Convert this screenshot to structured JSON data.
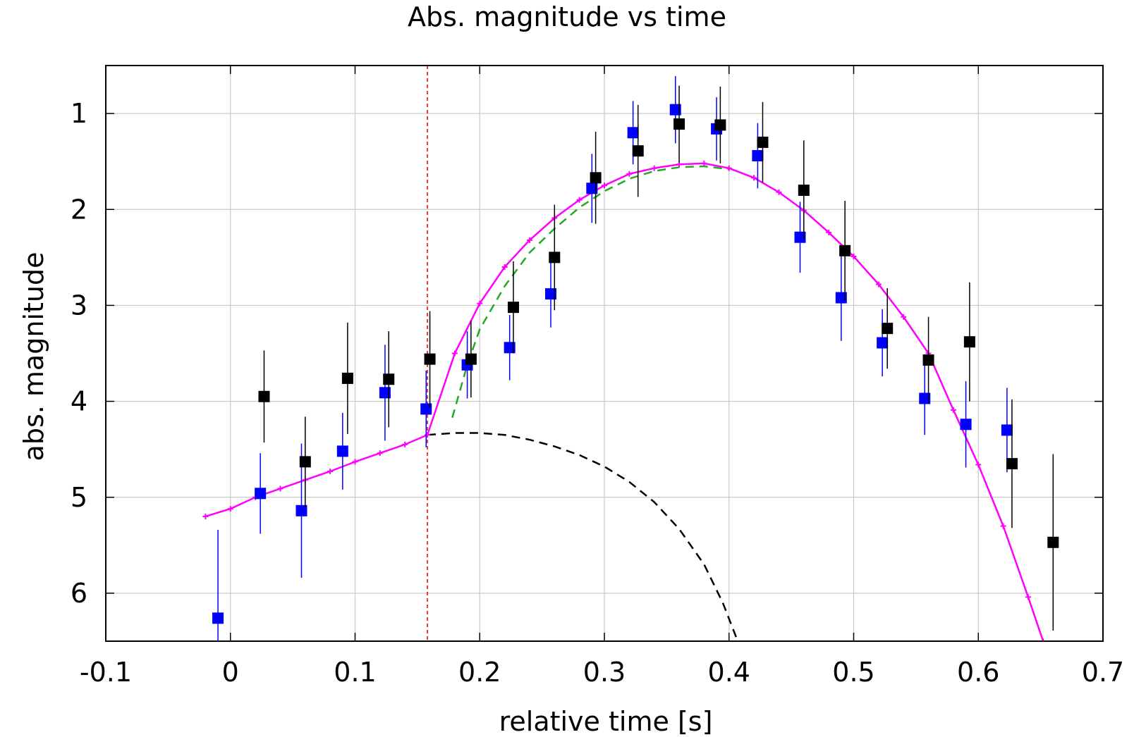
{
  "chart_data": {
    "type": "scatter",
    "title": "Abs. magnitude vs time",
    "xlabel": "relative time [s]",
    "ylabel": "abs. magnitude",
    "xlim": [
      -0.1,
      0.7
    ],
    "ylim": [
      6.5,
      0.5
    ],
    "y_inverted": true,
    "grid": true,
    "x_ticks": [
      "-0.1",
      "0",
      "0.1",
      "0.2",
      "0.3",
      "0.4",
      "0.5",
      "0.6",
      "0.7"
    ],
    "y_ticks": [
      "1",
      "2",
      "3",
      "4",
      "5",
      "6"
    ],
    "vline": {
      "x": 0.158,
      "color": "#e00000",
      "style": "dashed"
    },
    "colors": {
      "blue_points": "#0000ff",
      "black_points": "#000000",
      "fit_line": "#ff00ff",
      "green_dashed": "#22aa22",
      "black_dashed": "#000000"
    },
    "series": [
      {
        "kind": "errorbar",
        "color": "#0000ff",
        "points": [
          {
            "x": -0.01,
            "y": 6.26,
            "err": 0.92
          },
          {
            "x": 0.024,
            "y": 4.96,
            "err": 0.42
          },
          {
            "x": 0.057,
            "y": 5.14,
            "err": 0.7
          },
          {
            "x": 0.09,
            "y": 4.52,
            "err": 0.4
          },
          {
            "x": 0.124,
            "y": 3.91,
            "err": 0.5
          },
          {
            "x": 0.157,
            "y": 4.08,
            "err": 0.4
          },
          {
            "x": 0.19,
            "y": 3.62,
            "err": 0.35
          },
          {
            "x": 0.224,
            "y": 3.44,
            "err": 0.34
          },
          {
            "x": 0.257,
            "y": 2.88,
            "err": 0.35
          },
          {
            "x": 0.29,
            "y": 1.78,
            "err": 0.36
          },
          {
            "x": 0.323,
            "y": 1.2,
            "err": 0.33
          },
          {
            "x": 0.357,
            "y": 0.96,
            "err": 0.35
          },
          {
            "x": 0.39,
            "y": 1.16,
            "err": 0.33
          },
          {
            "x": 0.423,
            "y": 1.44,
            "err": 0.34
          },
          {
            "x": 0.457,
            "y": 2.29,
            "err": 0.37
          },
          {
            "x": 0.49,
            "y": 2.92,
            "err": 0.45
          },
          {
            "x": 0.523,
            "y": 3.39,
            "err": 0.35
          },
          {
            "x": 0.557,
            "y": 3.97,
            "err": 0.38
          },
          {
            "x": 0.59,
            "y": 4.24,
            "err": 0.45
          },
          {
            "x": 0.623,
            "y": 4.3,
            "err": 0.44
          }
        ]
      },
      {
        "kind": "errorbar",
        "color": "#000000",
        "points": [
          {
            "x": 0.027,
            "y": 3.95,
            "err": 0.48
          },
          {
            "x": 0.06,
            "y": 4.63,
            "err": 0.47
          },
          {
            "x": 0.094,
            "y": 3.76,
            "err": 0.58
          },
          {
            "x": 0.127,
            "y": 3.77,
            "err": 0.5
          },
          {
            "x": 0.16,
            "y": 3.56,
            "err": 0.5
          },
          {
            "x": 0.193,
            "y": 3.56,
            "err": 0.4
          },
          {
            "x": 0.227,
            "y": 3.02,
            "err": 0.48
          },
          {
            "x": 0.26,
            "y": 2.5,
            "err": 0.55
          },
          {
            "x": 0.293,
            "y": 1.67,
            "err": 0.48
          },
          {
            "x": 0.327,
            "y": 1.39,
            "err": 0.48
          },
          {
            "x": 0.36,
            "y": 1.11,
            "err": 0.4
          },
          {
            "x": 0.393,
            "y": 1.12,
            "err": 0.4
          },
          {
            "x": 0.427,
            "y": 1.3,
            "err": 0.42
          },
          {
            "x": 0.46,
            "y": 1.8,
            "err": 0.52
          },
          {
            "x": 0.493,
            "y": 2.43,
            "err": 0.52
          },
          {
            "x": 0.527,
            "y": 3.24,
            "err": 0.42
          },
          {
            "x": 0.56,
            "y": 3.57,
            "err": 0.45
          },
          {
            "x": 0.593,
            "y": 3.38,
            "err": 0.62
          },
          {
            "x": 0.627,
            "y": 4.65,
            "err": 0.67
          },
          {
            "x": 0.66,
            "y": 5.47,
            "err": 0.92
          }
        ]
      },
      {
        "kind": "line",
        "color": "#ff00ff",
        "markers": true,
        "points": [
          [
            -0.02,
            5.2
          ],
          [
            0.0,
            5.12
          ],
          [
            0.02,
            5.0
          ],
          [
            0.04,
            4.91
          ],
          [
            0.06,
            4.82
          ],
          [
            0.08,
            4.73
          ],
          [
            0.1,
            4.63
          ],
          [
            0.12,
            4.54
          ],
          [
            0.14,
            4.45
          ],
          [
            0.158,
            4.35
          ],
          [
            0.18,
            3.5
          ],
          [
            0.2,
            2.98
          ],
          [
            0.22,
            2.6
          ],
          [
            0.24,
            2.32
          ],
          [
            0.26,
            2.09
          ],
          [
            0.28,
            1.9
          ],
          [
            0.3,
            1.75
          ],
          [
            0.32,
            1.63
          ],
          [
            0.34,
            1.57
          ],
          [
            0.36,
            1.53
          ],
          [
            0.38,
            1.52
          ],
          [
            0.4,
            1.57
          ],
          [
            0.42,
            1.67
          ],
          [
            0.44,
            1.82
          ],
          [
            0.46,
            2.01
          ],
          [
            0.48,
            2.24
          ],
          [
            0.5,
            2.49
          ],
          [
            0.52,
            2.78
          ],
          [
            0.54,
            3.12
          ],
          [
            0.56,
            3.5
          ],
          [
            0.58,
            4.09
          ],
          [
            0.6,
            4.66
          ],
          [
            0.62,
            5.3
          ],
          [
            0.64,
            6.04
          ],
          [
            0.652,
            6.5
          ]
        ]
      },
      {
        "kind": "dashed_line",
        "color": "#22aa22",
        "points": [
          [
            0.178,
            4.17
          ],
          [
            0.19,
            3.62
          ],
          [
            0.2,
            3.25
          ],
          [
            0.22,
            2.8
          ],
          [
            0.24,
            2.45
          ],
          [
            0.26,
            2.2
          ],
          [
            0.28,
            1.98
          ],
          [
            0.3,
            1.81
          ],
          [
            0.32,
            1.68
          ],
          [
            0.34,
            1.6
          ],
          [
            0.36,
            1.56
          ],
          [
            0.38,
            1.55
          ],
          [
            0.4,
            1.58
          ]
        ]
      },
      {
        "kind": "dashed_line",
        "color": "#000000",
        "points": [
          [
            0.158,
            4.35
          ],
          [
            0.18,
            4.33
          ],
          [
            0.2,
            4.33
          ],
          [
            0.22,
            4.35
          ],
          [
            0.24,
            4.4
          ],
          [
            0.26,
            4.47
          ],
          [
            0.28,
            4.56
          ],
          [
            0.3,
            4.68
          ],
          [
            0.32,
            4.84
          ],
          [
            0.34,
            5.05
          ],
          [
            0.36,
            5.33
          ],
          [
            0.38,
            5.7
          ],
          [
            0.395,
            6.1
          ],
          [
            0.407,
            6.5
          ]
        ]
      }
    ]
  }
}
